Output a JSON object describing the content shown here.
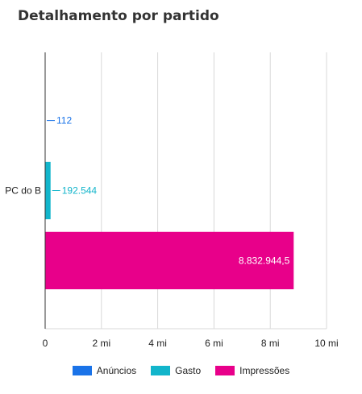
{
  "chart_data": {
    "type": "bar",
    "orientation": "horizontal",
    "title": "Detalhamento por partido",
    "categories": [
      "PC do B"
    ],
    "series": [
      {
        "name": "Anúncios",
        "color": "#1a73e8",
        "values": [
          112
        ],
        "label": "112"
      },
      {
        "name": "Gasto",
        "color": "#12b5cb",
        "values": [
          192544
        ],
        "label": "192.544"
      },
      {
        "name": "Impressões",
        "color": "#e8008a",
        "values": [
          8832944.5
        ],
        "label": "8.832.944,5"
      }
    ],
    "xlim": [
      0,
      10000000
    ],
    "xticks": [
      {
        "value": 0,
        "label": "0"
      },
      {
        "value": 2000000,
        "label": "2 mi"
      },
      {
        "value": 4000000,
        "label": "4 mi"
      },
      {
        "value": 6000000,
        "label": "6 mi"
      },
      {
        "value": 8000000,
        "label": "8 mi"
      },
      {
        "value": 10000000,
        "label": "10 mi"
      }
    ],
    "grid": true,
    "legend_position": "bottom"
  }
}
